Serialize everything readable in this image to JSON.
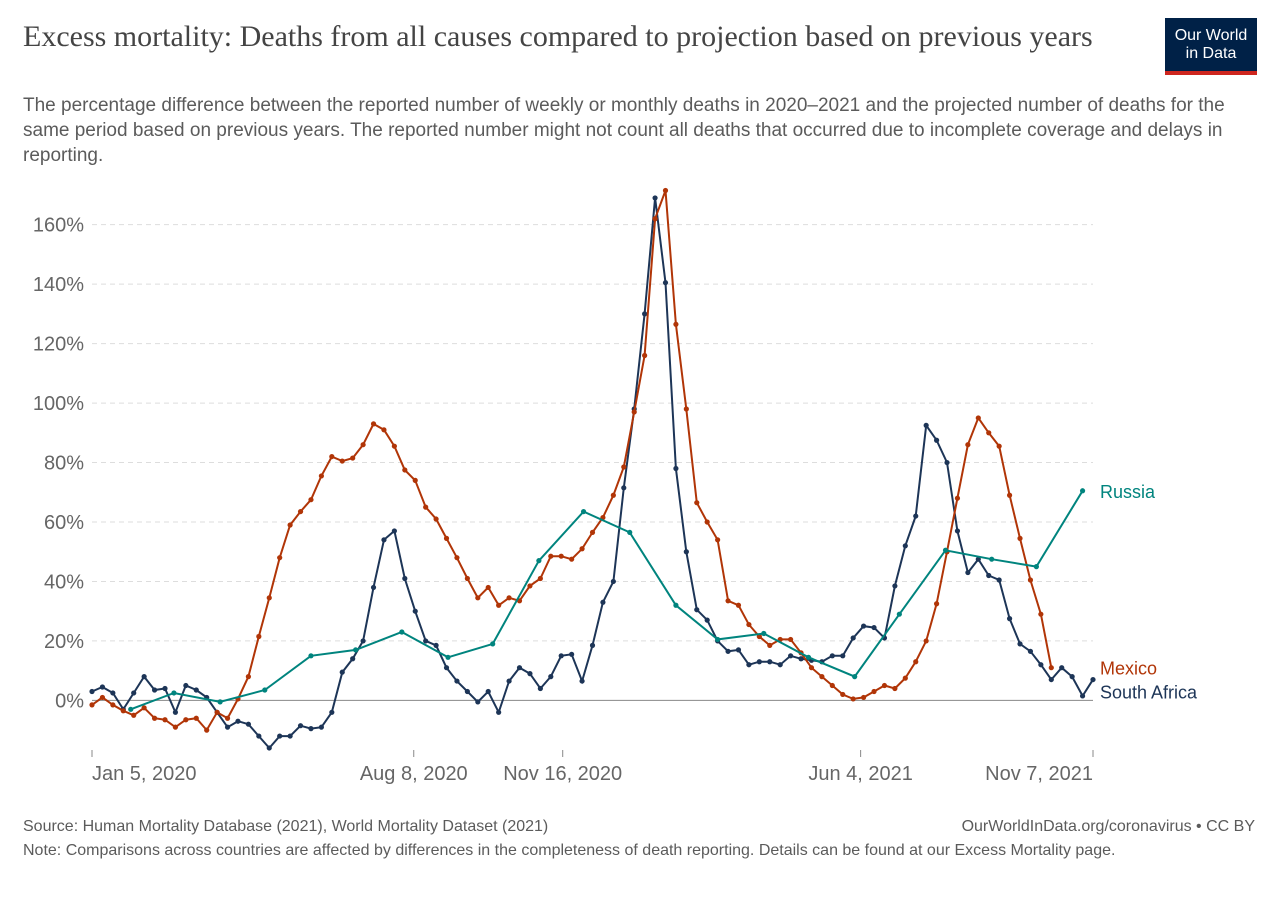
{
  "chart_data": {
    "type": "line",
    "title": "Excess mortality: Deaths from all causes compared to projection based on previous years",
    "subtitle": "The percentage difference between the reported number of weekly or monthly deaths in 2020–2021 and the projected number of deaths for the same period based on previous years. The reported number might not count all deaths that occurred due to incomplete coverage and delays in reporting.",
    "logo": [
      "Our World",
      "in Data"
    ],
    "source": "Source: Human Mortality Database (2021), World Mortality Dataset (2021)",
    "credit": "OurWorldInData.org/coronavirus • CC BY",
    "note": "Note: Comparisons across countries are affected by differences in the completeness of death reporting. Details can be found at our Excess Mortality page.",
    "x": [
      "2020-01-05",
      "2020-01-12",
      "2020-01-19",
      "2020-01-26",
      "2020-02-02",
      "2020-02-09",
      "2020-02-16",
      "2020-02-23",
      "2020-03-01",
      "2020-03-08",
      "2020-03-15",
      "2020-03-22",
      "2020-03-29",
      "2020-04-05",
      "2020-04-12",
      "2020-04-19",
      "2020-04-26",
      "2020-05-03",
      "2020-05-10",
      "2020-05-17",
      "2020-05-24",
      "2020-05-31",
      "2020-06-07",
      "2020-06-14",
      "2020-06-21",
      "2020-06-28",
      "2020-07-05",
      "2020-07-12",
      "2020-07-19",
      "2020-07-26",
      "2020-08-02",
      "2020-08-09",
      "2020-08-16",
      "2020-08-23",
      "2020-08-30",
      "2020-09-06",
      "2020-09-13",
      "2020-09-20",
      "2020-09-27",
      "2020-10-04",
      "2020-10-11",
      "2020-10-18",
      "2020-10-25",
      "2020-11-01",
      "2020-11-08",
      "2020-11-15",
      "2020-11-22",
      "2020-11-29",
      "2020-12-06",
      "2020-12-13",
      "2020-12-20",
      "2020-12-27",
      "2021-01-03",
      "2021-01-10",
      "2021-01-17",
      "2021-01-24",
      "2021-01-31",
      "2021-02-07",
      "2021-02-14",
      "2021-02-21",
      "2021-02-28",
      "2021-03-07",
      "2021-03-14",
      "2021-03-21",
      "2021-03-28",
      "2021-04-04",
      "2021-04-11",
      "2021-04-18",
      "2021-04-25",
      "2021-05-02",
      "2021-05-09",
      "2021-05-16",
      "2021-05-23",
      "2021-05-30",
      "2021-06-06",
      "2021-06-13",
      "2021-06-20",
      "2021-06-27",
      "2021-07-04",
      "2021-07-11",
      "2021-07-18",
      "2021-07-25",
      "2021-08-01",
      "2021-08-08",
      "2021-08-15",
      "2021-08-22",
      "2021-08-29",
      "2021-09-05",
      "2021-09-12",
      "2021-09-19",
      "2021-09-26",
      "2021-10-03",
      "2021-10-10",
      "2021-10-17",
      "2021-10-24",
      "2021-10-31",
      "2021-11-07"
    ],
    "series": [
      {
        "name": "Russia",
        "color": "#00847e",
        "x": [
          "2020-01-31",
          "2020-02-29",
          "2020-03-31",
          "2020-04-30",
          "2020-05-31",
          "2020-06-30",
          "2020-07-31",
          "2020-08-31",
          "2020-09-30",
          "2020-10-31",
          "2020-11-30",
          "2020-12-31",
          "2021-01-31",
          "2021-02-28",
          "2021-03-31",
          "2021-04-30",
          "2021-05-31",
          "2021-06-30",
          "2021-07-31",
          "2021-08-31",
          "2021-09-30",
          "2021-10-31"
        ],
        "values": [
          -3,
          2.5,
          -0.5,
          3.5,
          15,
          17,
          23,
          14.5,
          19,
          47,
          63.5,
          56.5,
          32,
          20.5,
          22.5,
          14.5,
          8,
          29,
          50.5,
          47.5,
          45,
          70.5
        ]
      },
      {
        "name": "Mexico",
        "color": "#b13507",
        "values": [
          -1.5,
          1,
          -1.5,
          -3.5,
          -5,
          -2.5,
          -6,
          -6.5,
          -9,
          -6.5,
          -6,
          -10,
          -4,
          -6,
          0.5,
          8,
          21.5,
          34.5,
          48,
          59,
          63.5,
          67.5,
          75.5,
          82,
          80.5,
          81.5,
          86,
          93,
          91,
          85.5,
          77.5,
          74,
          65,
          61,
          54.5,
          48,
          41,
          34.5,
          38,
          32,
          34.5,
          33.5,
          38.5,
          41,
          48.5,
          48.5,
          47.5,
          51,
          56.5,
          61.5,
          69,
          78.5,
          97,
          116,
          162,
          171.5,
          126.5,
          98,
          66.5,
          60,
          54,
          33.5,
          32,
          25.5,
          21.5,
          18.5,
          20.5,
          20.5,
          16,
          11,
          8,
          5,
          2,
          0.5,
          1,
          3,
          5,
          4,
          7.5,
          13,
          20,
          32.5,
          50,
          68,
          86,
          95,
          90,
          85.5,
          69,
          54.5,
          40.5,
          29,
          11,
          null,
          null,
          null,
          null
        ]
      },
      {
        "name": "South Africa",
        "color": "#1d3557",
        "values": [
          3,
          4.5,
          2.5,
          -3,
          2.5,
          8,
          3.5,
          4,
          -4,
          5,
          3.5,
          1,
          -4,
          -9,
          -7,
          -8,
          -12,
          -16,
          -12,
          -12,
          -8.5,
          -9.5,
          -9,
          -4,
          9.5,
          14,
          20,
          38,
          54,
          57,
          41,
          30,
          20,
          18.5,
          11,
          6.5,
          3,
          -0.5,
          3,
          -4,
          6.5,
          11,
          9,
          4,
          8,
          15,
          15.5,
          6.5,
          18.5,
          33,
          40,
          71.5,
          98,
          130,
          169,
          140.5,
          78,
          50,
          30.5,
          27,
          20,
          16.5,
          17,
          12,
          13,
          13,
          12,
          15,
          14,
          13.5,
          13,
          15,
          15,
          21,
          25,
          24.5,
          21,
          38.5,
          52,
          62,
          92.5,
          87.5,
          80,
          57,
          43,
          47.5,
          42,
          40.5,
          27.5,
          19,
          16.5,
          12,
          7,
          11,
          8,
          1.5,
          7
        ]
      }
    ],
    "xlim": [
      "2020-01-05",
      "2021-11-07"
    ],
    "xticks": [
      {
        "value": "2020-01-05",
        "label": "Jan 5, 2020"
      },
      {
        "value": "2020-08-08",
        "label": "Aug 8, 2020"
      },
      {
        "value": "2020-11-16",
        "label": "Nov 16, 2020"
      },
      {
        "value": "2021-06-04",
        "label": "Jun 4, 2021"
      },
      {
        "value": "2021-11-07",
        "label": "Nov 7, 2021"
      }
    ],
    "ylim": [
      -15,
      172
    ],
    "yticks": [
      {
        "value": 0,
        "label": "0%"
      },
      {
        "value": 20,
        "label": "20%"
      },
      {
        "value": 40,
        "label": "40%"
      },
      {
        "value": 60,
        "label": "60%"
      },
      {
        "value": 80,
        "label": "80%"
      },
      {
        "value": 100,
        "label": "100%"
      },
      {
        "value": 120,
        "label": "120%"
      },
      {
        "value": 140,
        "label": "140%"
      },
      {
        "value": 160,
        "label": "160%"
      }
    ],
    "grid": true
  }
}
